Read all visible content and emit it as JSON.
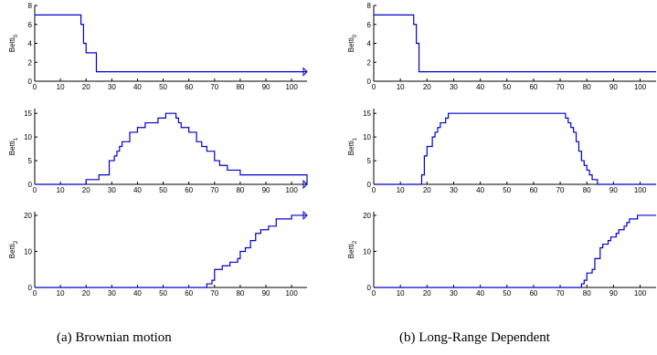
{
  "captions": {
    "a": "(a)  Brownian motion",
    "b": "(b)  Long-Range Dependent"
  },
  "colors": {
    "series": "#0000cc",
    "axis": "#000000"
  },
  "chart_data": [
    {
      "id": "a0",
      "type": "line",
      "step": true,
      "ylabel_base": "Betti",
      "ylabel_sub": "0",
      "xlim": [
        0,
        106
      ],
      "ylim": [
        0,
        8
      ],
      "xticks": [
        0,
        10,
        20,
        30,
        40,
        50,
        60,
        70,
        80,
        90,
        100
      ],
      "yticks": [
        0,
        2,
        4,
        6,
        8
      ],
      "series": [
        {
          "x": [
            0,
            18,
            19,
            20,
            24,
            106
          ],
          "y": [
            7,
            6,
            4,
            3,
            1,
            1
          ]
        }
      ],
      "end_arrow": true
    },
    {
      "id": "a1",
      "type": "line",
      "step": true,
      "ylabel_base": "Betti",
      "ylabel_sub": "1",
      "xlim": [
        0,
        106
      ],
      "ylim": [
        0,
        16
      ],
      "xticks": [
        0,
        10,
        20,
        30,
        40,
        50,
        60,
        70,
        80,
        90,
        100
      ],
      "yticks": [
        0,
        5,
        10,
        15
      ],
      "series": [
        {
          "x": [
            0,
            20,
            24,
            25,
            29,
            31,
            32,
            33,
            34,
            35,
            37,
            40,
            43,
            48,
            51,
            55,
            56,
            57,
            60,
            63,
            65,
            67,
            70,
            72,
            75,
            80,
            106
          ],
          "y": [
            0,
            1,
            1,
            2,
            5,
            6,
            7,
            8,
            9,
            9,
            11,
            12,
            13,
            14,
            15,
            14,
            13,
            12,
            11,
            9,
            8,
            7,
            5,
            4,
            3,
            2,
            0
          ]
        }
      ],
      "end_arrow": true
    },
    {
      "id": "a2",
      "type": "line",
      "step": true,
      "ylabel_base": "Betti",
      "ylabel_sub": "2",
      "xlim": [
        0,
        106
      ],
      "ylim": [
        0,
        21
      ],
      "xticks": [
        0,
        10,
        20,
        30,
        40,
        50,
        60,
        70,
        80,
        90,
        100
      ],
      "yticks": [
        0,
        10,
        20
      ],
      "series": [
        {
          "x": [
            0,
            67,
            69,
            70,
            73,
            76,
            79,
            80,
            82,
            84,
            86,
            88,
            91,
            94,
            100,
            106
          ],
          "y": [
            0,
            1,
            2,
            5,
            6,
            7,
            8,
            10,
            11,
            13,
            15,
            16,
            17,
            19,
            20,
            20
          ]
        }
      ],
      "end_arrow": true
    },
    {
      "id": "b0",
      "type": "line",
      "step": true,
      "ylabel_base": "Betti",
      "ylabel_sub": "0",
      "xlim": [
        0,
        106
      ],
      "ylim": [
        0,
        8
      ],
      "xticks": [
        0,
        10,
        20,
        30,
        40,
        50,
        60,
        70,
        80,
        90,
        100
      ],
      "yticks": [
        0,
        2,
        4,
        6,
        8
      ],
      "series": [
        {
          "x": [
            0,
            15,
            16,
            17,
            106
          ],
          "y": [
            7,
            6,
            4,
            1,
            1
          ]
        }
      ],
      "end_arrow": false
    },
    {
      "id": "b1",
      "type": "line",
      "step": true,
      "ylabel_base": "Betti",
      "ylabel_sub": "1",
      "xlim": [
        0,
        106
      ],
      "ylim": [
        0,
        16
      ],
      "xticks": [
        0,
        10,
        20,
        30,
        40,
        50,
        60,
        70,
        80,
        90,
        100
      ],
      "yticks": [
        0,
        5,
        10,
        15
      ],
      "series": [
        {
          "x": [
            0,
            18,
            19,
            20,
            22,
            23,
            24,
            25,
            27,
            28,
            72,
            73,
            74,
            75,
            76,
            77,
            78,
            79,
            80,
            81,
            82,
            83,
            84,
            85,
            106
          ],
          "y": [
            0,
            2,
            6,
            8,
            10,
            11,
            12,
            13,
            14,
            15,
            14,
            13,
            12,
            11,
            9,
            7,
            5,
            4,
            3,
            2,
            1,
            1,
            0,
            0,
            0
          ]
        }
      ],
      "end_arrow": false
    },
    {
      "id": "b2",
      "type": "line",
      "step": true,
      "ylabel_base": "Betti",
      "ylabel_sub": "2",
      "xlim": [
        0,
        106
      ],
      "ylim": [
        0,
        21
      ],
      "xticks": [
        0,
        10,
        20,
        30,
        40,
        50,
        60,
        70,
        80,
        90,
        100
      ],
      "yticks": [
        0,
        10,
        20
      ],
      "series": [
        {
          "x": [
            0,
            78,
            79,
            80,
            82,
            83,
            85,
            86,
            88,
            89,
            91,
            92,
            94,
            95,
            96,
            97,
            99,
            100,
            102,
            106
          ],
          "y": [
            0,
            1,
            2,
            4,
            5,
            8,
            11,
            12,
            13,
            14,
            15,
            16,
            17,
            18,
            19,
            19,
            20,
            20,
            20,
            20
          ]
        }
      ],
      "end_arrow": false
    }
  ]
}
